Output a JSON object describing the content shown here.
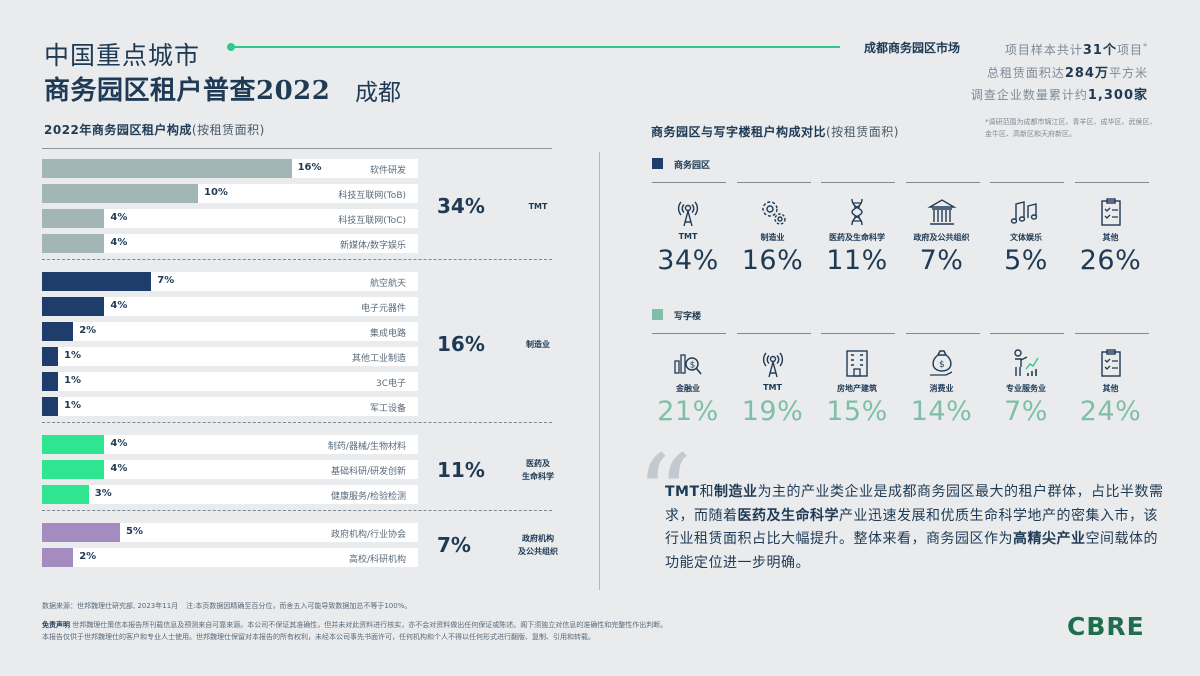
{
  "header": {
    "title_line1": "中国重点城市",
    "title_line2": "商务园区租户普查2022",
    "city": "成都",
    "subtitle": "成都商务园区市场",
    "stat1_pre": "项目样本共计",
    "stat1_val": "31个",
    "stat1_post": "项目",
    "stat1_mark": "*",
    "stat2_pre": "总租赁面积达",
    "stat2_val": "284万",
    "stat2_post": "平方米",
    "stat3_pre": "调查企业数量累计约",
    "stat3_val": "1,300家",
    "note": "*调研范围为成都市锦江区、青羊区、成华区、武侯区、金牛区、高新区和天府新区。"
  },
  "left": {
    "title": "2022年商务园区租户构成",
    "title_paren": "(按租赁面积)"
  },
  "chart_data": {
    "type": "bar",
    "title": "2022年商务园区租户构成(按租赁面积)",
    "groups": [
      {
        "name": "TMT",
        "total": "34%",
        "color": "#a2b6b6",
        "items": [
          {
            "label": "软件研发",
            "value": 16,
            "text": "16%"
          },
          {
            "label": "科技互联网(ToB)",
            "value": 10,
            "text": "10%"
          },
          {
            "label": "科技互联网(ToC)",
            "value": 4,
            "text": "4%"
          },
          {
            "label": "新媒体/数字娱乐",
            "value": 4,
            "text": "4%"
          }
        ]
      },
      {
        "name": "制造业",
        "total": "16%",
        "color": "#1e3d6b",
        "items": [
          {
            "label": "航空航天",
            "value": 7,
            "text": "7%"
          },
          {
            "label": "电子元器件",
            "value": 4,
            "text": "4%"
          },
          {
            "label": "集成电路",
            "value": 2,
            "text": "2%"
          },
          {
            "label": "其他工业制造",
            "value": 1,
            "text": "1%"
          },
          {
            "label": "3C电子",
            "value": 1,
            "text": "1%"
          },
          {
            "label": "军工设备",
            "value": 1,
            "text": "1%"
          }
        ]
      },
      {
        "name": "医药及\n生命科学",
        "total": "11%",
        "color": "#2fe58f",
        "items": [
          {
            "label": "制药/器械/生物材料",
            "value": 4,
            "text": "4%"
          },
          {
            "label": "基础科研/研发创新",
            "value": 4,
            "text": "4%"
          },
          {
            "label": "健康服务/检验检测",
            "value": 3,
            "text": "3%"
          }
        ]
      },
      {
        "name": "政府机构\n及公共组织",
        "total": "7%",
        "color": "#a48cc0",
        "items": [
          {
            "label": "政府机构/行业协会",
            "value": 5,
            "text": "5%"
          },
          {
            "label": "高校/科研机构",
            "value": 2,
            "text": "2%"
          }
        ]
      }
    ]
  },
  "right": {
    "title": "商务园区与写字楼租户构成对比",
    "title_paren": "(按租赁面积)",
    "park": {
      "label": "商务园区",
      "color": "#1e3d6b",
      "items": [
        {
          "label": "TMT",
          "value": "34%",
          "icon": "tower-icon"
        },
        {
          "label": "制造业",
          "value": "16%",
          "icon": "gears-icon"
        },
        {
          "label": "医药及生命科学",
          "value": "11%",
          "icon": "dna-icon"
        },
        {
          "label": "政府及公共组织",
          "value": "7%",
          "icon": "government-icon"
        },
        {
          "label": "文体娱乐",
          "value": "5%",
          "icon": "music-icon"
        },
        {
          "label": "其他",
          "value": "26%",
          "icon": "clipboard-icon"
        }
      ]
    },
    "office": {
      "label": "写字楼",
      "color": "#7fbfa9",
      "items": [
        {
          "label": "金融业",
          "value": "21%",
          "icon": "finance-icon"
        },
        {
          "label": "TMT",
          "value": "19%",
          "icon": "tower-icon"
        },
        {
          "label": "房地产建筑",
          "value": "15%",
          "icon": "building-icon"
        },
        {
          "label": "消费业",
          "value": "14%",
          "icon": "moneybag-icon"
        },
        {
          "label": "专业服务业",
          "value": "7%",
          "icon": "presenter-icon"
        },
        {
          "label": "其他",
          "value": "24%",
          "icon": "clipboard-icon"
        }
      ]
    }
  },
  "quote": {
    "p1": "TMT",
    "p2": "和",
    "p3": "制造业",
    "p4": "为主的产业类企业是成都商务园区最大的租户群体，占比半数需求，而随着",
    "p5": "医药及生命科学",
    "p6": "产业迅速发展和优质生命科学地产的密集入市，该行业租赁面积占比大幅提升。整体来看，商务园区作为",
    "p7": "高精尖产业",
    "p8": "空间载体的功能定位进一步明确。"
  },
  "footer": {
    "source": "数据来源：世邦魏理仕研究部, 2023年11月",
    "source_note": "注:本页数据因精确至百分位，而舍五入可能导致数据加总不等于100%。",
    "disc_bold": "免责声明",
    "disc1": "世邦魏理仕策信本报告所刊载信息及预测来自可靠来源。本公司不保证其准确性，但并未对此资料进行核实，亦不会对资料做出任何保证或陈述。阁下须独立对信息的准确性和完整性作出判断。",
    "disc2": "本报告仅供于世邦魏理仕的客户和专业人士使用。世邦魏理仕保留对本报告的所有权利，未经本公司事先书面许可，任何机构和个人不得以任何形式进行翻版、复制、引用和转载。",
    "logo": "CBRE"
  }
}
